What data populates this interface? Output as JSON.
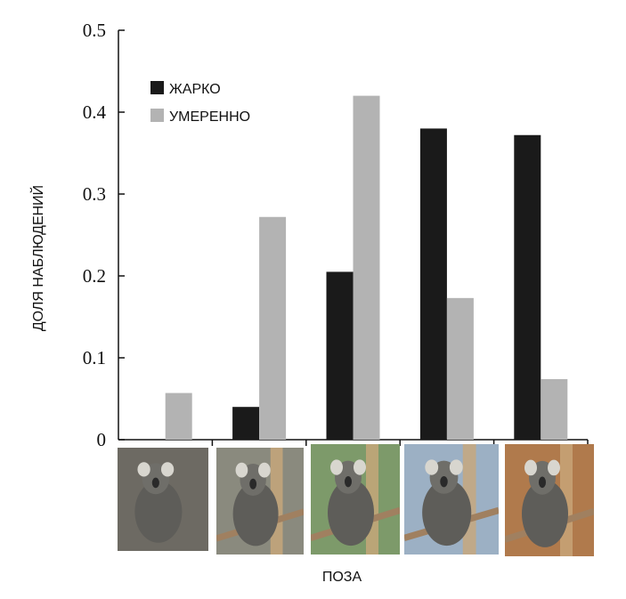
{
  "chart_data": {
    "type": "bar",
    "categories": [
      "",
      "",
      "",
      "",
      ""
    ],
    "series": [
      {
        "name": "ЖАРКО",
        "color": "#1a1a1a",
        "values": [
          0,
          0.04,
          0.205,
          0.38,
          0.372
        ]
      },
      {
        "name": "УМЕРЕННО",
        "color": "#b3b3b3",
        "values": [
          0.057,
          0.272,
          0.42,
          0.173,
          0.074
        ]
      }
    ],
    "title": "",
    "xlabel": "ПОЗА",
    "ylabel": "ДОЛЯ НАБЛЮДЕНИЙ",
    "ylim": [
      0,
      0.5
    ],
    "yticks": [
      "0",
      "0.1",
      "0.2",
      "0.3",
      "0.4",
      "0.5"
    ],
    "legend_position": "top-left",
    "grid": false,
    "category_images": [
      "koala-curled-ball-photo",
      "koala-sitting-hunched-photo",
      "koala-upright-tree-photo",
      "koala-leaning-branch-photo",
      "koala-sprawled-fork-photo"
    ]
  }
}
